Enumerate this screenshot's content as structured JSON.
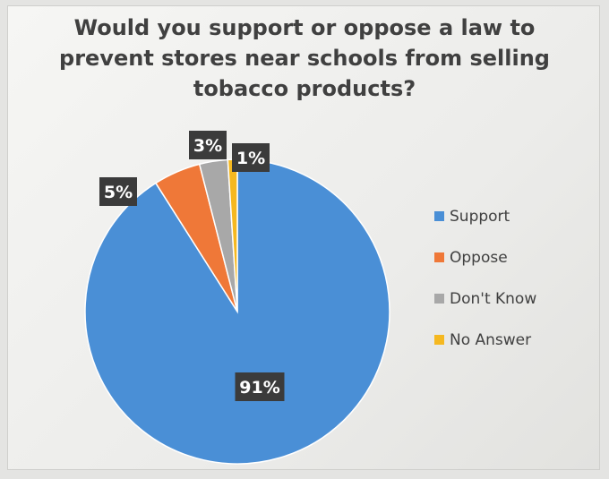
{
  "chart_data": {
    "type": "pie",
    "title_lines": [
      "Would you support or oppose a law to",
      "prevent stores near schools from selling",
      "tobacco products?"
    ],
    "slices": [
      {
        "name": "Support",
        "value": 91,
        "label": "91%",
        "color": "#4a8fd6"
      },
      {
        "name": "Oppose",
        "value": 5,
        "label": "5%",
        "color": "#ef7838"
      },
      {
        "name": "Don't Know",
        "value": 3,
        "label": "3%",
        "color": "#a8a8a8"
      },
      {
        "name": "No Answer",
        "value": 1,
        "label": "1%",
        "color": "#f5b820"
      }
    ],
    "start_angle": "12 o'clock",
    "direction": "counterclockwise",
    "data_label_style": "white text on dark gray box",
    "legend_position": "right"
  }
}
